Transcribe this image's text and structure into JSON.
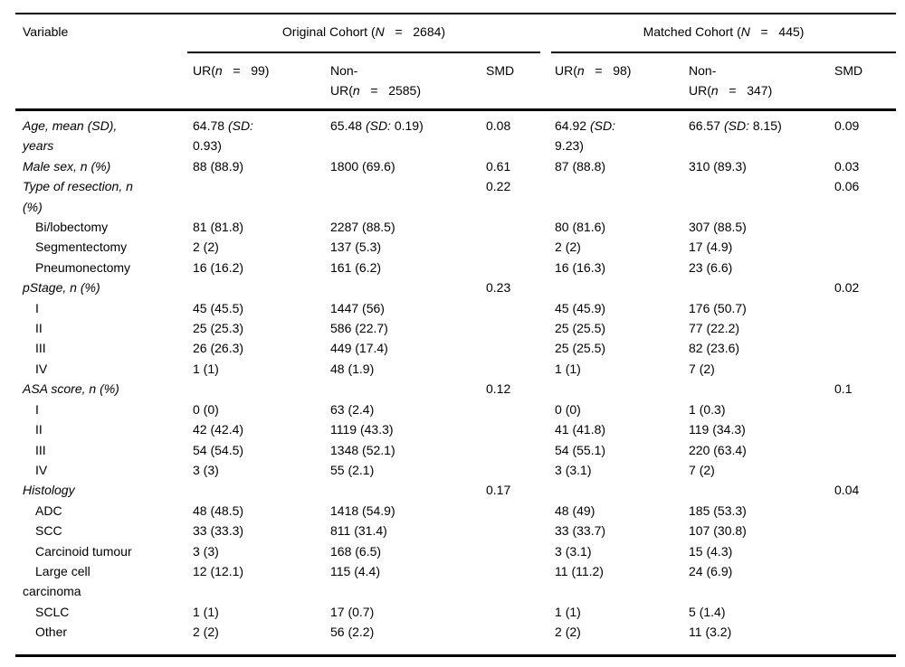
{
  "table": {
    "columns": {
      "variable": "Variable",
      "original_cohort": "Original Cohort (N   =   2684)",
      "matched_cohort": "Matched Cohort (N   =   445)",
      "sub": [
        "UR(n   =   99)",
        "Non-\nUR(n   =   2585)",
        "SMD",
        "UR(n   =   98)",
        "Non-\nUR(n   =   347)",
        "SMD"
      ]
    },
    "rows": [
      {
        "label": "Age, mean (SD),\nyears",
        "style": "group",
        "cells": [
          "64.78 (SD:\n0.93)",
          "65.48 (SD: 0.19)",
          "0.08",
          "64.92 (SD:\n9.23)",
          "66.57 (SD: 8.15)",
          "0.09"
        ]
      },
      {
        "label": "Male sex, n (%)",
        "style": "group",
        "cells": [
          "88 (88.9)",
          "1800 (69.6)",
          "0.61",
          "87 (88.8)",
          "310 (89.3)",
          "0.03"
        ]
      },
      {
        "label": "Type of resection, n\n(%)",
        "style": "group",
        "cells": [
          "",
          "",
          "0.22",
          "",
          "",
          "0.06"
        ]
      },
      {
        "label": "Bi/lobectomy",
        "style": "sub",
        "cells": [
          "81 (81.8)",
          "2287 (88.5)",
          "",
          "80 (81.6)",
          "307 (88.5)",
          ""
        ]
      },
      {
        "label": "Segmentectomy",
        "style": "sub",
        "cells": [
          "2 (2)",
          "137 (5.3)",
          "",
          "2 (2)",
          "17 (4.9)",
          ""
        ]
      },
      {
        "label": "Pneumonectomy",
        "style": "sub",
        "cells": [
          "16 (16.2)",
          "161 (6.2)",
          "",
          "16 (16.3)",
          "23 (6.6)",
          ""
        ]
      },
      {
        "label": "pStage, n (%)",
        "style": "group",
        "cells": [
          "",
          "",
          "0.23",
          "",
          "",
          "0.02"
        ]
      },
      {
        "label": "I",
        "style": "sub",
        "cells": [
          "45 (45.5)",
          "1447 (56)",
          "",
          "45 (45.9)",
          "176 (50.7)",
          ""
        ]
      },
      {
        "label": "II",
        "style": "sub",
        "cells": [
          "25 (25.3)",
          "586 (22.7)",
          "",
          "25 (25.5)",
          "77 (22.2)",
          ""
        ]
      },
      {
        "label": "III",
        "style": "sub",
        "cells": [
          "26 (26.3)",
          "449 (17.4)",
          "",
          "25 (25.5)",
          "82 (23.6)",
          ""
        ]
      },
      {
        "label": "IV",
        "style": "sub",
        "cells": [
          "1 (1)",
          "48 (1.9)",
          "",
          "1 (1)",
          "7 (2)",
          ""
        ]
      },
      {
        "label": "ASA score, n (%)",
        "style": "group",
        "cells": [
          "",
          "",
          "0.12",
          "",
          "",
          "0.1"
        ]
      },
      {
        "label": "I",
        "style": "sub",
        "cells": [
          "0 (0)",
          "63 (2.4)",
          "",
          "0 (0)",
          "1 (0.3)",
          ""
        ]
      },
      {
        "label": "II",
        "style": "sub",
        "cells": [
          "42 (42.4)",
          "1119 (43.3)",
          "",
          "41 (41.8)",
          "119 (34.3)",
          ""
        ]
      },
      {
        "label": "III",
        "style": "sub",
        "cells": [
          "54 (54.5)",
          "1348 (52.1)",
          "",
          "54 (55.1)",
          "220 (63.4)",
          ""
        ]
      },
      {
        "label": "IV",
        "style": "sub",
        "cells": [
          "3 (3)",
          "55 (2.1)",
          "",
          "3 (3.1)",
          "7 (2)",
          ""
        ]
      },
      {
        "label": "Histology",
        "style": "group",
        "cells": [
          "",
          "",
          "0.17",
          "",
          "",
          "0.04"
        ]
      },
      {
        "label": "ADC",
        "style": "sub",
        "cells": [
          "48 (48.5)",
          "1418 (54.9)",
          "",
          "48 (49)",
          "185 (53.3)",
          ""
        ]
      },
      {
        "label": "SCC",
        "style": "sub",
        "cells": [
          "33 (33.3)",
          "811 (31.4)",
          "",
          "33 (33.7)",
          "107 (30.8)",
          ""
        ]
      },
      {
        "label": "Carcinoid tumour",
        "style": "sub",
        "cells": [
          "3 (3)",
          "168 (6.5)",
          "",
          "3 (3.1)",
          "15 (4.3)",
          ""
        ]
      },
      {
        "label": "Large cell\ncarcinoma",
        "style": "sub",
        "cells": [
          "12 (12.1)",
          "115 (4.4)",
          "",
          "11 (11.2)",
          "24 (6.9)",
          ""
        ]
      },
      {
        "label": "SCLC",
        "style": "sub",
        "cells": [
          "1 (1)",
          "17 (0.7)",
          "",
          "1 (1)",
          "5 (1.4)",
          ""
        ]
      },
      {
        "label": "Other",
        "style": "sub",
        "cells": [
          "2 (2)",
          "56 (2.2)",
          "",
          "2 (2)",
          "11 (3.2)",
          ""
        ]
      }
    ]
  }
}
